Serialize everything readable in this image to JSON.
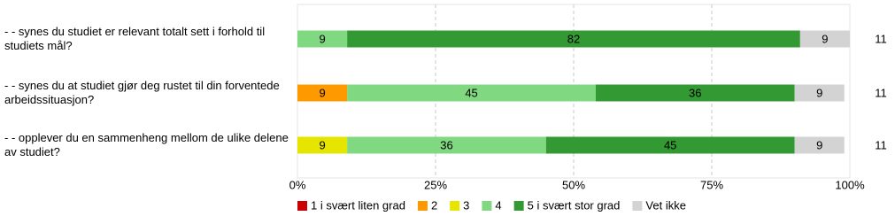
{
  "chart_data": {
    "type": "stacked-bar-horizontal",
    "categories": [
      "- - synes du studiet er relevant totalt sett i forhold til studiets mål?",
      "- - synes du at studiet gjør deg rustet til din forventede arbeidssituasjon?",
      "- - opplever du en sammenheng mellom de ulike delene av studiet?"
    ],
    "series": [
      {
        "name": "1 i svært liten grad",
        "color": "#cc0000",
        "values": [
          0,
          0,
          0
        ]
      },
      {
        "name": "2",
        "color": "#ff9900",
        "values": [
          0,
          9,
          0
        ]
      },
      {
        "name": "3",
        "color": "#e5e500",
        "values": [
          0,
          0,
          9
        ]
      },
      {
        "name": "4",
        "color": "#80d880",
        "values": [
          9,
          45,
          36
        ]
      },
      {
        "name": "5 i svært stor grad",
        "color": "#339933",
        "values": [
          82,
          36,
          45
        ]
      },
      {
        "name": "Vet ikke",
        "color": "#d3d3d3",
        "values": [
          9,
          9,
          9
        ]
      }
    ],
    "n": [
      11,
      11,
      11
    ],
    "xlim": [
      0,
      100
    ],
    "xticks": [
      {
        "value": 0,
        "label": "0%"
      },
      {
        "value": 25,
        "label": "25%"
      },
      {
        "value": 50,
        "label": "50%"
      },
      {
        "value": 75,
        "label": "75%"
      },
      {
        "value": 100,
        "label": "100%"
      }
    ],
    "grid": true
  }
}
